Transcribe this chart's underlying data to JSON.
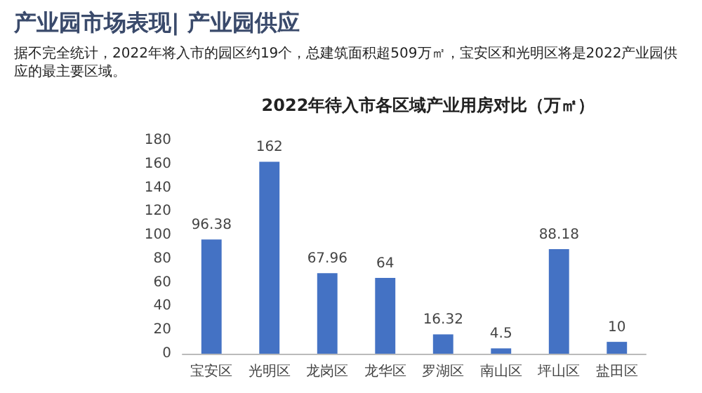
{
  "chart_data": {
    "type": "bar",
    "title": "2022年待入市各区域产业用房对比（万㎡）",
    "annotations": [
      "产业园市场表现| 产业园供应",
      "据不完全统计，2022年将入市的园区约19个，总建筑面积超509万㎡，宝安区和光明区将是2022产业园供应的最主要区域。"
    ],
    "categories": [
      "宝安区",
      "光明区",
      "龙岗区",
      "龙华区",
      "罗湖区",
      "南山区",
      "坪山区",
      "盐田区"
    ],
    "values": [
      96.38,
      162,
      67.96,
      64,
      16.32,
      4.5,
      88.18,
      10
    ],
    "color": "#4472c4",
    "ylim": [
      0,
      180
    ],
    "yticks": [
      0,
      20,
      40,
      60,
      80,
      100,
      120,
      140,
      160,
      180
    ],
    "grid": false,
    "data_labels": true
  }
}
